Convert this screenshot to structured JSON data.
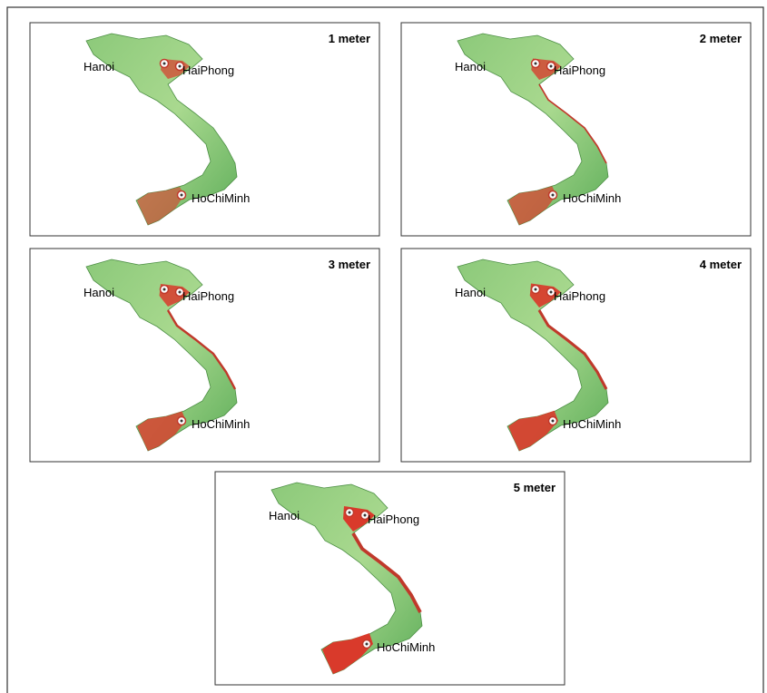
{
  "panels": [
    {
      "title": "1 meter",
      "cities": [
        "Hanoi",
        "HaiPhong",
        "HoChiMinh"
      ]
    },
    {
      "title": "2 meter",
      "cities": [
        "Hanoi",
        "HaiPhong",
        "HoChiMinh"
      ]
    },
    {
      "title": "3 meter",
      "cities": [
        "Hanoi",
        "HaiPhong",
        "HoChiMinh"
      ]
    },
    {
      "title": "4 meter",
      "cities": [
        "Hanoi",
        "HaiPhong",
        "HoChiMinh"
      ]
    },
    {
      "title": "5 meter",
      "cities": [
        "Hanoi",
        "HaiPhong",
        "HoChiMinh"
      ]
    }
  ]
}
